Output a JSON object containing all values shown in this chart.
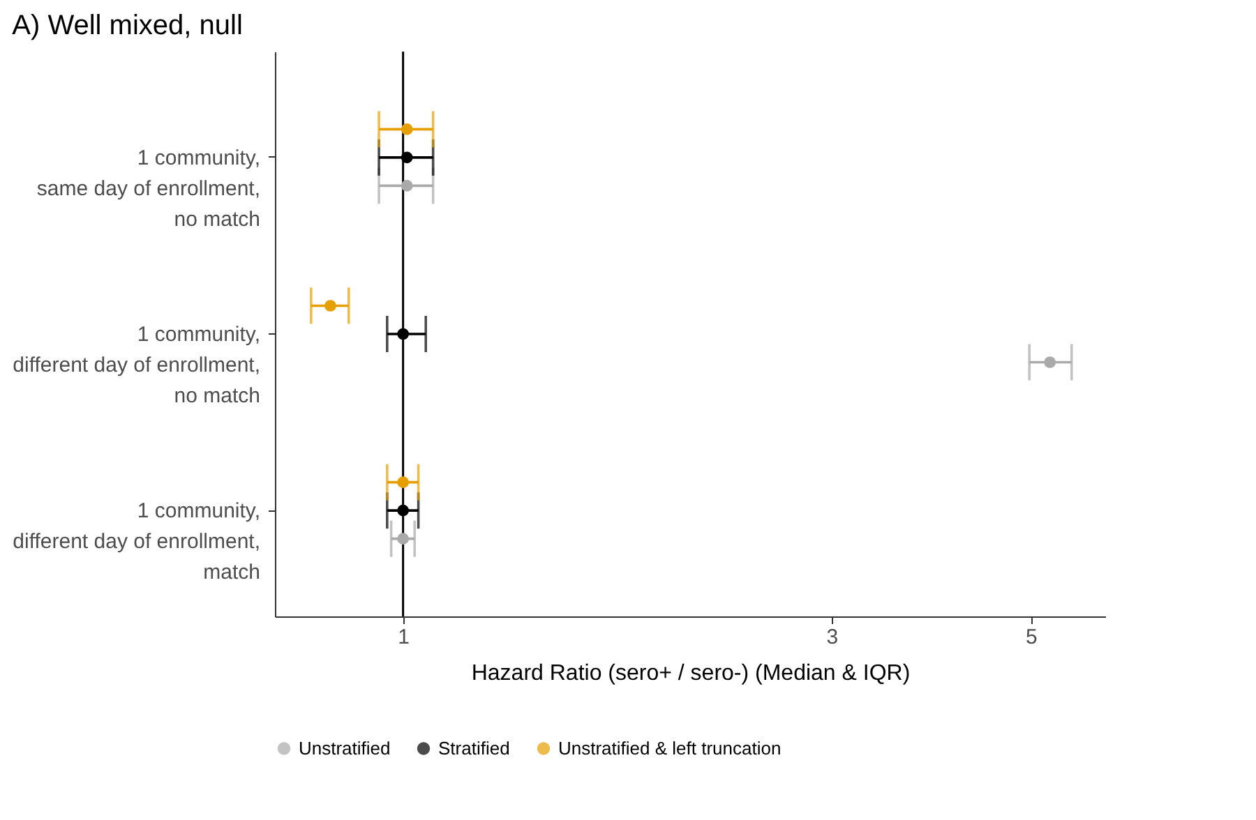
{
  "chart_data": {
    "type": "scatter",
    "title": "A) Well mixed, null",
    "xlabel": "Hazard Ratio (sero+ / sero-) (Median & IQR)",
    "orientation": "horizontal",
    "categories": [
      "1 community,\nsame day of enrollment,\nno match",
      "1 community,\ndifferent day of enrollment,\nno match",
      "1 community,\ndifferent day of enrollment,\nmatch"
    ],
    "series": [
      {
        "name": "Unstratified",
        "color": "#aaaaaa",
        "values": [
          1.01,
          5.25,
          1.0
        ],
        "errors": [
          [
            0.94,
            1.08
          ],
          [
            4.98,
            5.55
          ],
          [
            0.97,
            1.03
          ]
        ]
      },
      {
        "name": "Stratified",
        "color": "#000000",
        "values": [
          1.01,
          1.0,
          1.0
        ],
        "errors": [
          [
            0.94,
            1.08
          ],
          [
            0.96,
            1.06
          ],
          [
            0.96,
            1.04
          ]
        ]
      },
      {
        "name": "Unstratified & left truncation",
        "color": "#e69f00",
        "values": [
          1.01,
          0.83,
          1.0
        ],
        "errors": [
          [
            0.94,
            1.08
          ],
          [
            0.79,
            0.87
          ],
          [
            0.96,
            1.04
          ]
        ]
      }
    ],
    "xlim": [
      0.72,
      6.05
    ],
    "xticks": [
      1,
      3,
      5
    ],
    "log": "x",
    "grid": false,
    "legend": "bottom",
    "marker": "circle",
    "ref_lines": [
      {
        "axis": "x",
        "value": 1,
        "color": "#000000"
      }
    ]
  }
}
